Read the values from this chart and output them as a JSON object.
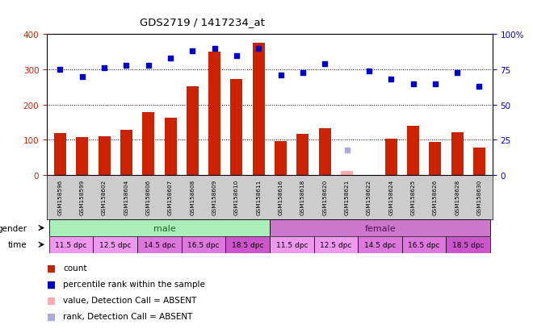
{
  "title": "GDS2719 / 1417234_at",
  "samples": [
    "GSM158596",
    "GSM158599",
    "GSM158602",
    "GSM158604",
    "GSM158606",
    "GSM158607",
    "GSM158608",
    "GSM158609",
    "GSM158610",
    "GSM158611",
    "GSM158616",
    "GSM158618",
    "GSM158620",
    "GSM158621",
    "GSM158622",
    "GSM158624",
    "GSM158625",
    "GSM158626",
    "GSM158628",
    "GSM158630"
  ],
  "bar_values": [
    120,
    107,
    110,
    128,
    178,
    163,
    253,
    350,
    272,
    375,
    97,
    118,
    133,
    12,
    0,
    104,
    140,
    94,
    122,
    78
  ],
  "bar_absent": [
    false,
    false,
    false,
    false,
    false,
    false,
    false,
    false,
    false,
    false,
    false,
    false,
    false,
    true,
    false,
    false,
    false,
    false,
    false,
    false
  ],
  "dot_values": [
    75,
    70,
    76,
    78,
    78,
    83,
    88,
    90,
    85,
    90,
    71,
    73,
    79,
    18,
    74,
    68,
    65,
    65,
    73,
    63
  ],
  "dot_absent": [
    false,
    false,
    false,
    false,
    false,
    false,
    false,
    false,
    false,
    false,
    false,
    false,
    false,
    true,
    false,
    false,
    false,
    false,
    false,
    false
  ],
  "bar_color": "#cc2200",
  "bar_absent_color": "#ffaaaa",
  "dot_color": "#0000cc",
  "dot_absent_color": "#aaaadd",
  "ylim_left": [
    0,
    400
  ],
  "ylim_right": [
    0,
    100
  ],
  "yticks_left": [
    0,
    100,
    200,
    300,
    400
  ],
  "yticks_right": [
    0,
    25,
    50,
    75,
    100
  ],
  "ytick_labels_right": [
    "0",
    "25",
    "50",
    "75",
    "100%"
  ],
  "grid_lines": [
    100,
    200,
    300
  ],
  "male_count": 10,
  "female_count": 10,
  "gender_color_male": "#aaeebb",
  "gender_color_female": "#cc77cc",
  "time_groups": [
    "11.5 dpc",
    "12.5 dpc",
    "14.5 dpc",
    "16.5 dpc",
    "18.5 dpc"
  ],
  "time_colors": [
    "#ee88ee",
    "#dd77dd",
    "#cc66cc",
    "#bb55bb",
    "#aa44aa"
  ],
  "sample_bg": "#cccccc",
  "legend_labels": [
    "count",
    "percentile rank within the sample",
    "value, Detection Call = ABSENT",
    "rank, Detection Call = ABSENT"
  ],
  "legend_colors": [
    "#cc2200",
    "#0000cc",
    "#ffaaaa",
    "#aaaadd"
  ]
}
